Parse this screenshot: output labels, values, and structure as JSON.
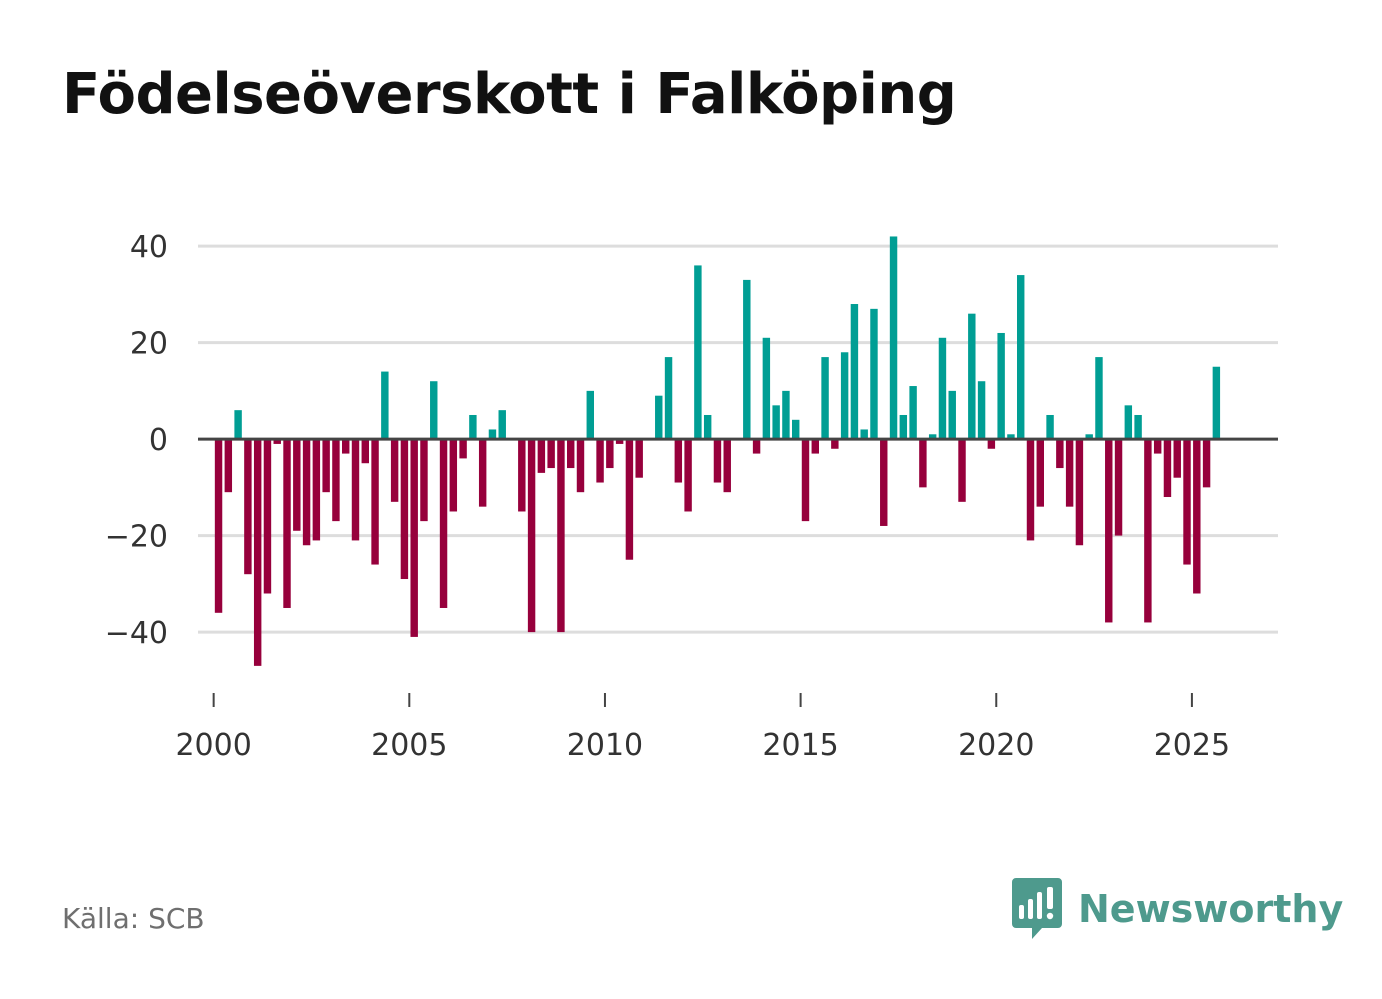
{
  "title": "Födelseöverskott i Falköping",
  "source": "Källa: SCB",
  "brand": {
    "name": "Newsworthy",
    "icon": "newsworthy-logo-icon"
  },
  "colors": {
    "positive": "#009e94",
    "negative": "#97003c",
    "grid": "#dddddd",
    "zero_line": "#444444",
    "text": "#333333"
  },
  "chart_data": {
    "type": "bar",
    "title": "Födelseöverskott i Falköping",
    "xlabel": "",
    "ylabel": "",
    "x_axis": {
      "min": 1999.6,
      "max": 2027.2,
      "ticks": [
        2000,
        2005,
        2010,
        2015,
        2020,
        2025
      ]
    },
    "y_axis": {
      "min": -52,
      "max": 45,
      "ticks": [
        40,
        20,
        0,
        -20,
        -40
      ],
      "tick_labels": [
        "40",
        "20",
        "0",
        "−20",
        "−40"
      ]
    },
    "grid": true,
    "bar_width_years": 0.19,
    "series": [
      {
        "name": "Födelseöverskott",
        "x": [
          2000.125,
          2000.375,
          2000.625,
          2000.875,
          2001.125,
          2001.375,
          2001.625,
          2001.875,
          2002.125,
          2002.375,
          2002.625,
          2002.875,
          2003.125,
          2003.375,
          2003.625,
          2003.875,
          2004.125,
          2004.375,
          2004.625,
          2004.875,
          2005.125,
          2005.375,
          2005.625,
          2005.875,
          2006.125,
          2006.375,
          2006.625,
          2006.875,
          2007.125,
          2007.375,
          2007.625,
          2007.875,
          2008.125,
          2008.375,
          2008.625,
          2008.875,
          2009.125,
          2009.375,
          2009.625,
          2009.875,
          2010.125,
          2010.375,
          2010.625,
          2010.875,
          2011.125,
          2011.375,
          2011.625,
          2011.875,
          2012.125,
          2012.375,
          2012.625,
          2012.875,
          2013.125,
          2013.375,
          2013.625,
          2013.875,
          2014.125,
          2014.375,
          2014.625,
          2014.875,
          2015.125,
          2015.375,
          2015.625,
          2015.875,
          2016.125,
          2016.375,
          2016.625,
          2016.875,
          2017.125,
          2017.375,
          2017.625,
          2017.875,
          2018.125,
          2018.375,
          2018.625,
          2018.875,
          2019.125,
          2019.375,
          2019.625,
          2019.875,
          2020.125,
          2020.375,
          2020.625,
          2020.875,
          2021.125,
          2021.375,
          2021.625,
          2021.875,
          2022.125,
          2022.375,
          2022.625,
          2022.875,
          2023.125,
          2023.375,
          2023.625,
          2023.875,
          2024.125,
          2024.375,
          2024.625,
          2024.875,
          2025.125,
          2025.375,
          2025.625
        ],
        "values": [
          -36,
          -11,
          6,
          -28,
          -47,
          -32,
          -1,
          -35,
          -19,
          -22,
          -21,
          -11,
          -17,
          -3,
          -21,
          -5,
          -26,
          14,
          -13,
          -29,
          -41,
          -17,
          12,
          -35,
          -15,
          -4,
          5,
          -14,
          2,
          6,
          0,
          -15,
          -40,
          -7,
          -6,
          -40,
          -6,
          -11,
          10,
          -9,
          -6,
          -1,
          -25,
          -8,
          0,
          9,
          17,
          -9,
          -15,
          36,
          5,
          -9,
          -11,
          0,
          33,
          -3,
          21,
          7,
          10,
          4,
          -17,
          -3,
          17,
          -2,
          18,
          28,
          2,
          27,
          -18,
          42,
          5,
          11,
          -10,
          1,
          21,
          10,
          -13,
          26,
          12,
          -2,
          22,
          1,
          34,
          -21,
          -14,
          5,
          -6,
          -14,
          -22,
          1,
          17,
          -38,
          -20,
          7,
          5,
          -38,
          -3,
          -12,
          -8,
          -26,
          -32,
          -10,
          15
        ]
      }
    ]
  }
}
